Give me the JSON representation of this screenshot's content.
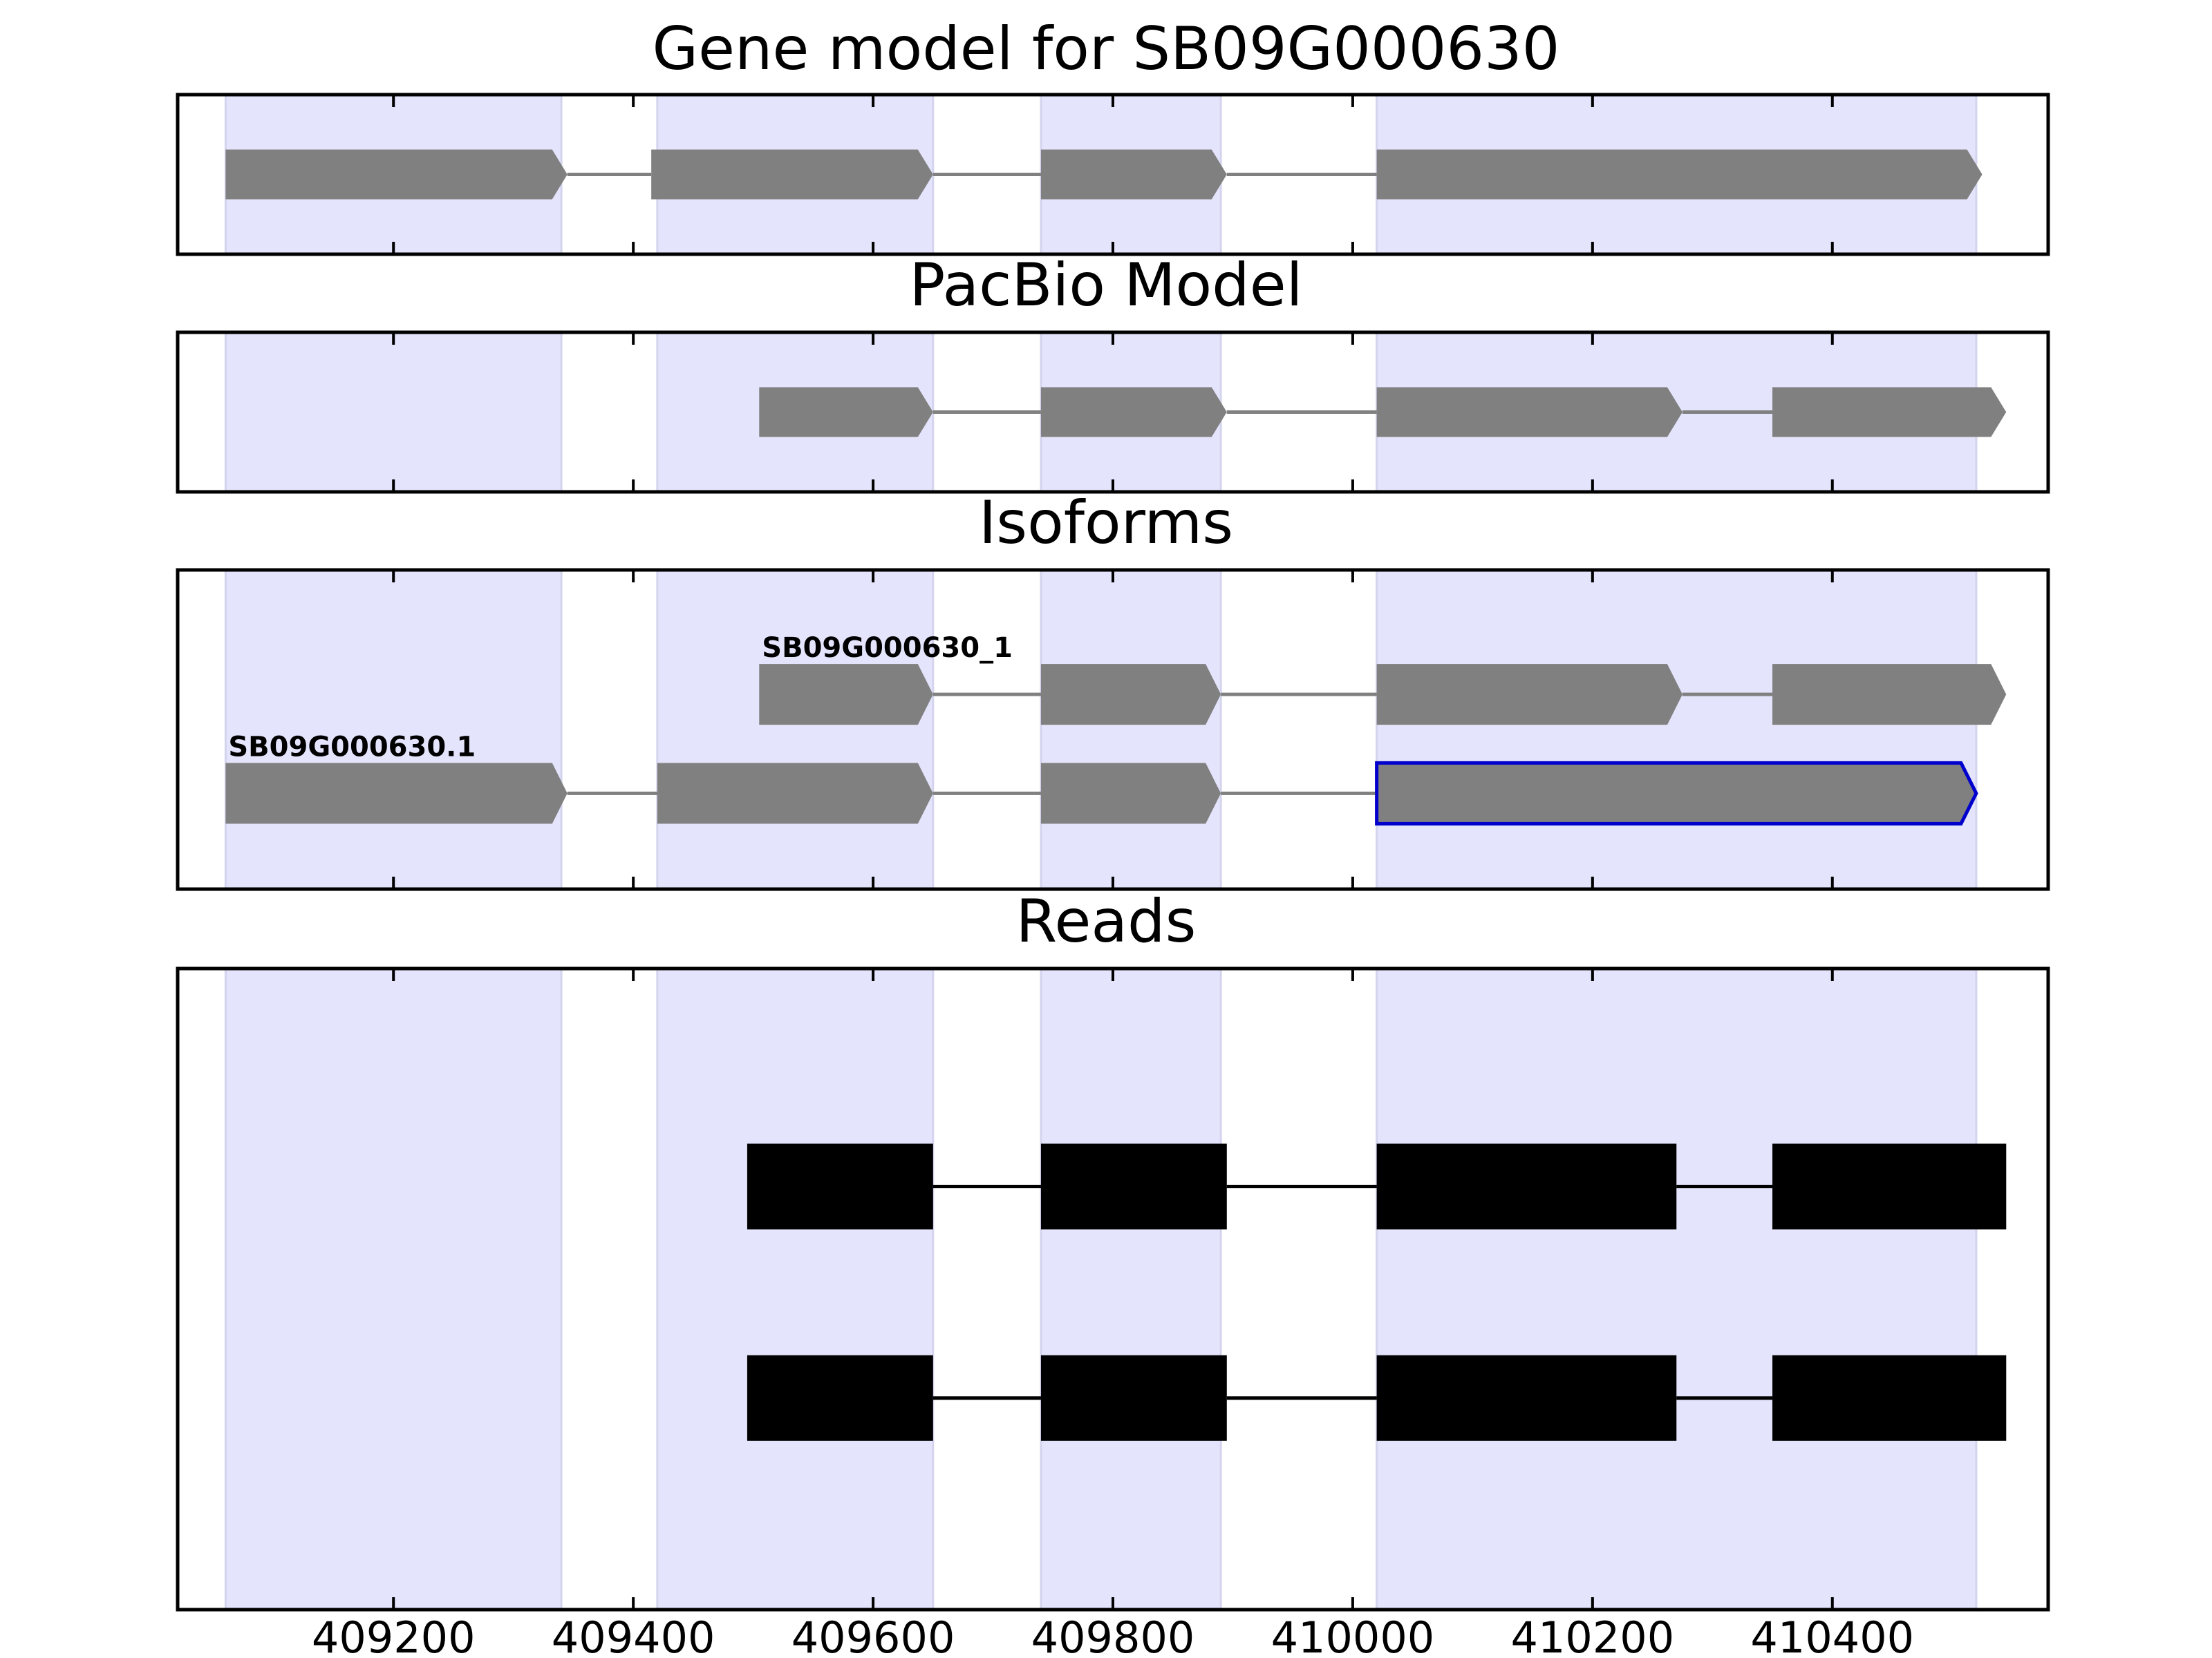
{
  "chart_data": {
    "type": "gene-model-tracks",
    "xlim": [
      409020,
      410580
    ],
    "x_ticks": [
      409200,
      409400,
      409600,
      409800,
      410000,
      410200,
      410400
    ],
    "shaded_regions": [
      [
        409060,
        409340
      ],
      [
        409420,
        409650
      ],
      [
        409740,
        409890
      ],
      [
        410020,
        410520
      ]
    ],
    "colors": {
      "shade": "#e4e4fc",
      "feature": "#808080",
      "read": "#000000",
      "highlight": "#0000cc"
    },
    "panels": [
      {
        "title": "Gene model for SB09G000630",
        "ylim": [
          0,
          1
        ],
        "tracks": [
          {
            "label": "",
            "y": 0.5,
            "color": "#808080",
            "highlight": [],
            "exons": [
              [
                409060,
                409345
              ],
              [
                409415,
                409650
              ],
              [
                409740,
                409895
              ],
              [
                410020,
                410525
              ]
            ]
          }
        ]
      },
      {
        "title": "PacBio Model",
        "ylim": [
          0,
          1
        ],
        "tracks": [
          {
            "label": "",
            "y": 0.5,
            "color": "#808080",
            "highlight": [],
            "exons": [
              [
                409505,
                409650
              ],
              [
                409740,
                409895
              ],
              [
                410020,
                410275
              ],
              [
                410350,
                410545
              ]
            ]
          }
        ]
      },
      {
        "title": "Isoforms",
        "ylim": [
          0,
          1
        ],
        "tracks": [
          {
            "label": "SB09G000630_1",
            "y": 0.61,
            "color": "#808080",
            "highlight": [],
            "exons": [
              [
                409505,
                409650
              ],
              [
                409740,
                409890
              ],
              [
                410020,
                410275
              ],
              [
                410350,
                410545
              ]
            ]
          },
          {
            "label": "SB09G000630.1",
            "y": 0.3,
            "color": "#808080",
            "highlight": [
              3
            ],
            "exons": [
              [
                409060,
                409345
              ],
              [
                409420,
                409650
              ],
              [
                409740,
                409890
              ],
              [
                410020,
                410520
              ]
            ]
          }
        ]
      },
      {
        "title": "Reads",
        "ylim": [
          0,
          1
        ],
        "tracks": [
          {
            "label": "",
            "y": 0.66,
            "color": "#000000",
            "highlight": [],
            "exons": [
              [
                409495,
                409650
              ],
              [
                409740,
                409895
              ],
              [
                410020,
                410270
              ],
              [
                410350,
                410545
              ]
            ]
          },
          {
            "label": "",
            "y": 0.33,
            "color": "#000000",
            "highlight": [],
            "exons": [
              [
                409495,
                409650
              ],
              [
                409740,
                409895
              ],
              [
                410020,
                410270
              ],
              [
                410350,
                410545
              ]
            ]
          }
        ]
      }
    ]
  }
}
